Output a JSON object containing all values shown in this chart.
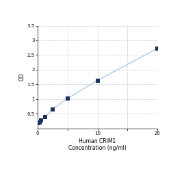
{
  "x_data": [
    0,
    0.156,
    0.312,
    0.625,
    1.25,
    2.5,
    5,
    10,
    20
  ],
  "y_data": [
    0.168,
    0.182,
    0.21,
    0.27,
    0.38,
    0.65,
    1.02,
    1.63,
    2.72
  ],
  "line_color": "#aaccee",
  "marker_color": "#1a3060",
  "marker_size": 4,
  "xlabel_line1": "Human CRIM1",
  "xlabel_line2": "Concentration (ng/ml)",
  "ylabel": "OD",
  "xlim": [
    0,
    20
  ],
  "ylim": [
    0,
    3.5
  ],
  "x_ticks": [
    0,
    5,
    10,
    15,
    20
  ],
  "x_ticklabels": [
    "0",
    "",
    "10",
    "",
    "20"
  ],
  "y_ticks": [
    0.5,
    1.0,
    1.5,
    2.0,
    2.5,
    3.0,
    3.5
  ],
  "y_ticklabels": [
    "0.5",
    "1",
    "1.5",
    "2",
    "2.5",
    "3",
    "3.5"
  ],
  "grid_color": "#cccccc",
  "background_color": "#ffffff",
  "tick_fontsize": 5,
  "label_fontsize": 5.5
}
